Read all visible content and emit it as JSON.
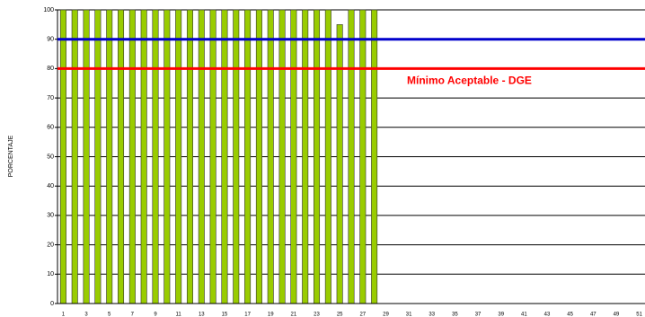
{
  "chart_data": {
    "type": "bar",
    "y_label": "PORCENTAJE",
    "categories": [
      "1",
      null,
      "3",
      null,
      "5",
      null,
      "7",
      null,
      "9",
      null,
      "11",
      null,
      "13",
      null,
      "15",
      null,
      "17",
      null,
      "19",
      null,
      "21",
      null,
      "23",
      null,
      "25",
      null,
      "27",
      null,
      "29",
      null,
      "31",
      null,
      "33",
      null,
      "35",
      null,
      "37",
      null,
      "39",
      null,
      "41",
      null,
      "43",
      null,
      "45",
      null,
      "47",
      null,
      "49",
      null,
      "51"
    ],
    "values": [
      100,
      100,
      100,
      100,
      100,
      100,
      100,
      100,
      100,
      100,
      100,
      100,
      100,
      100,
      100,
      100,
      100,
      100,
      100,
      100,
      100,
      100,
      100,
      100,
      95,
      100,
      100,
      100,
      null,
      null,
      null,
      null,
      null,
      null,
      null,
      null,
      null,
      null,
      null,
      null,
      null,
      null,
      null,
      null,
      null,
      null,
      null,
      null,
      null,
      null,
      null
    ],
    "color": "#99cc00",
    "ylim": [
      0,
      100
    ],
    "yticks": [
      0,
      10,
      20,
      30,
      40,
      50,
      60,
      70,
      80,
      90,
      100
    ],
    "grid": true,
    "reference_lines": [
      {
        "value": 90,
        "color": "#0000cc"
      },
      {
        "value": 80,
        "color": "#ff0000",
        "label": "Mínimo Aceptable -  DGE"
      }
    ]
  }
}
